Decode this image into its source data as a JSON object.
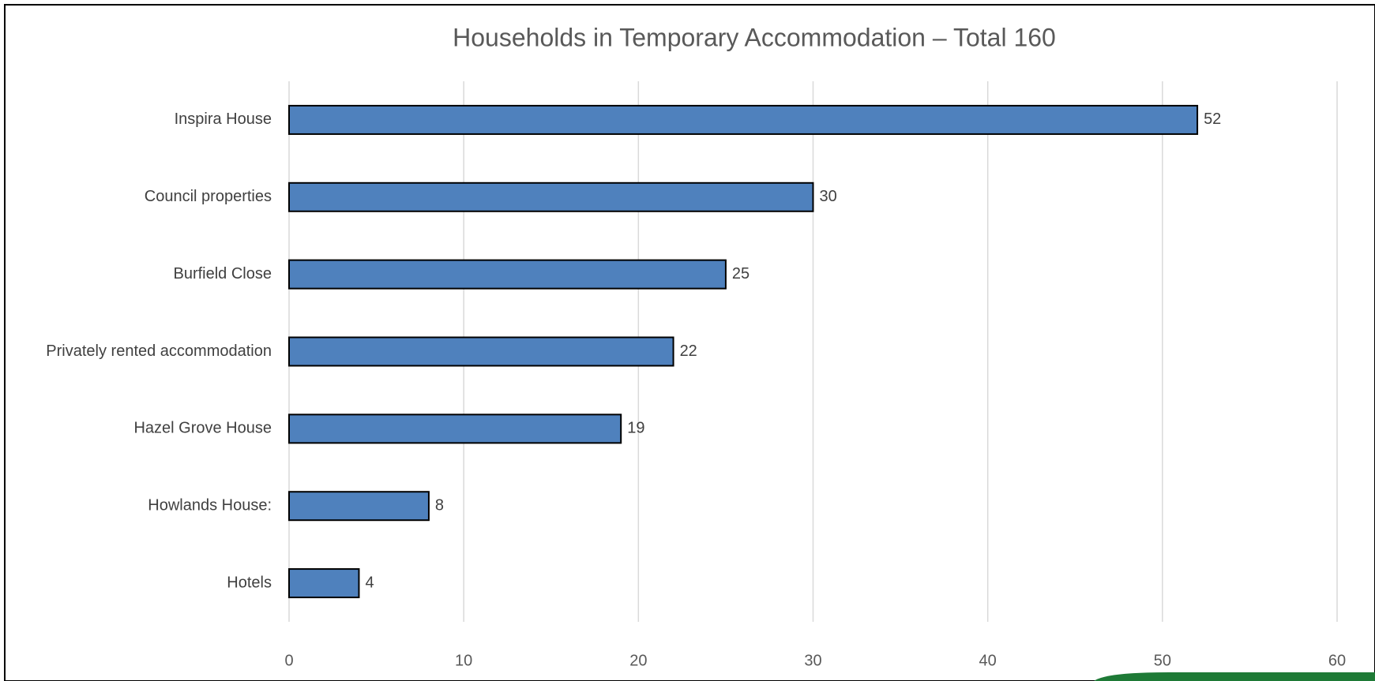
{
  "chart_data": {
    "type": "barh",
    "title": "Households in Temporary Accommodation – Total 160",
    "categories": [
      "Inspira House",
      "Council properties",
      "Burfield Close",
      "Privately rented accommodation",
      "Hazel Grove House",
      "Howlands House:",
      "Hotels"
    ],
    "values": [
      52,
      30,
      25,
      22,
      19,
      8,
      4
    ],
    "color": "#4f81bd",
    "xlim": [
      0,
      60
    ],
    "xticks": [
      0,
      10,
      20,
      30,
      40,
      50,
      60
    ],
    "grid": true
  }
}
